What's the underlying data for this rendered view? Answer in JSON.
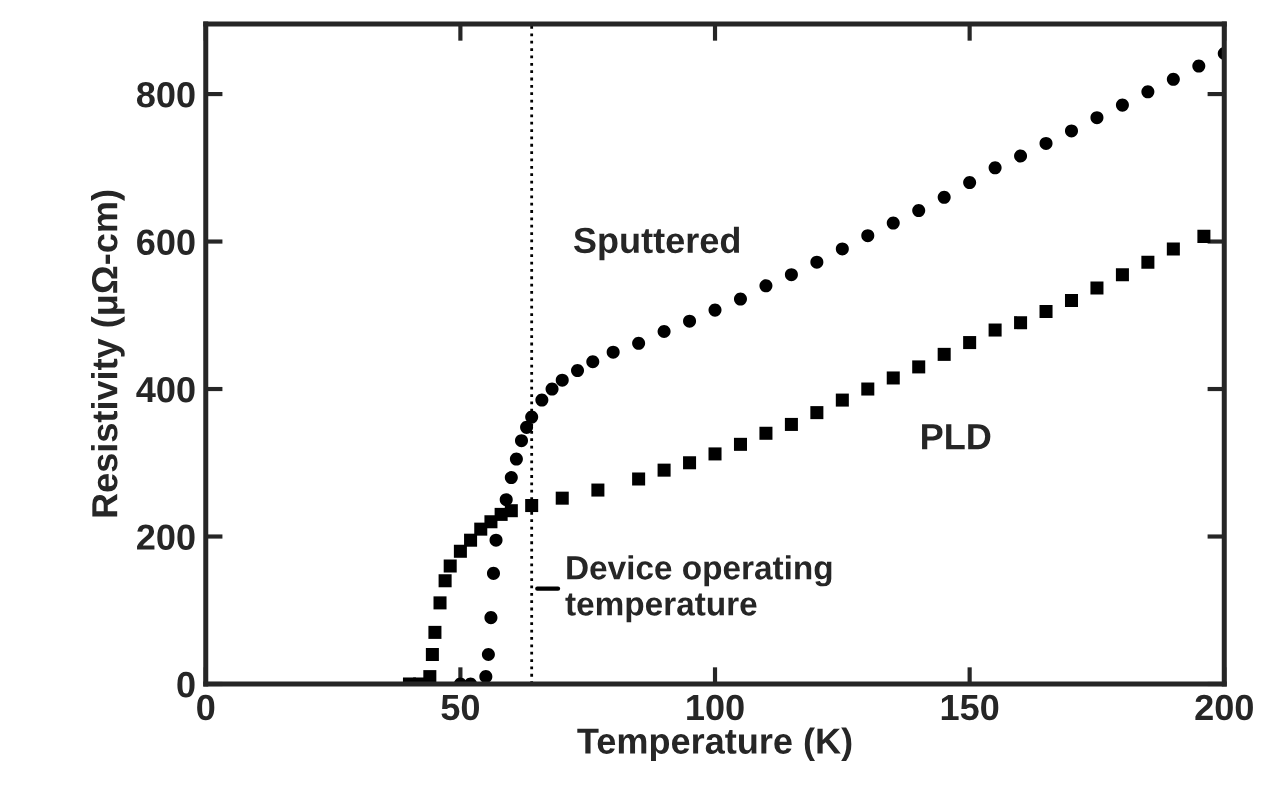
{
  "chart_data": {
    "type": "scatter",
    "xlabel": "Temperature (K)",
    "ylabel": "Resistivity (μΩ-cm)",
    "xlim": [
      0,
      200
    ],
    "ylim": [
      0,
      895
    ],
    "xticks": [
      0,
      50,
      100,
      150,
      200
    ],
    "yticks": [
      0,
      200,
      400,
      600,
      800
    ],
    "grid": false,
    "legend": false,
    "series": [
      {
        "name": "Sputtered",
        "color": "#000000",
        "marker": "circle",
        "x": [
          50,
          52,
          55,
          55.5,
          56,
          56.5,
          57,
          59,
          60,
          61,
          62,
          63,
          64,
          66,
          68,
          70,
          73,
          76,
          80,
          85,
          90,
          95,
          100,
          105,
          110,
          115,
          120,
          125,
          130,
          135,
          140,
          145,
          150,
          155,
          160,
          165,
          170,
          175,
          180,
          185,
          190,
          195,
          200
        ],
        "values": [
          0,
          0,
          10,
          40,
          90,
          150,
          195,
          250,
          280,
          305,
          330,
          348,
          362,
          385,
          400,
          412,
          425,
          437,
          450,
          462,
          478,
          492,
          507,
          522,
          540,
          555,
          572,
          590,
          608,
          625,
          642,
          660,
          680,
          700,
          716,
          733,
          750,
          768,
          785,
          803,
          820,
          838,
          855
        ]
      },
      {
        "name": "PLD",
        "color": "#000000",
        "marker": "square",
        "x": [
          40,
          42,
          44,
          44.5,
          45,
          46,
          47,
          48,
          50,
          52,
          54,
          56,
          58,
          60,
          64,
          70,
          77,
          85,
          90,
          95,
          100,
          105,
          110,
          115,
          120,
          125,
          130,
          135,
          140,
          145,
          150,
          155,
          160,
          165,
          170,
          175,
          180,
          185,
          190,
          196
        ],
        "values": [
          0,
          0,
          10,
          40,
          70,
          110,
          140,
          160,
          180,
          195,
          210,
          220,
          230,
          235,
          242,
          252,
          263,
          278,
          290,
          300,
          312,
          325,
          340,
          352,
          368,
          385,
          400,
          415,
          430,
          447,
          463,
          480,
          490,
          505,
          520,
          537,
          555,
          572,
          590,
          607
        ]
      }
    ],
    "ref_lines": [
      {
        "axis": "x",
        "value": 64,
        "label": "Device operating\ntemperature",
        "line_style": "dotted",
        "color": "#000000"
      }
    ]
  }
}
